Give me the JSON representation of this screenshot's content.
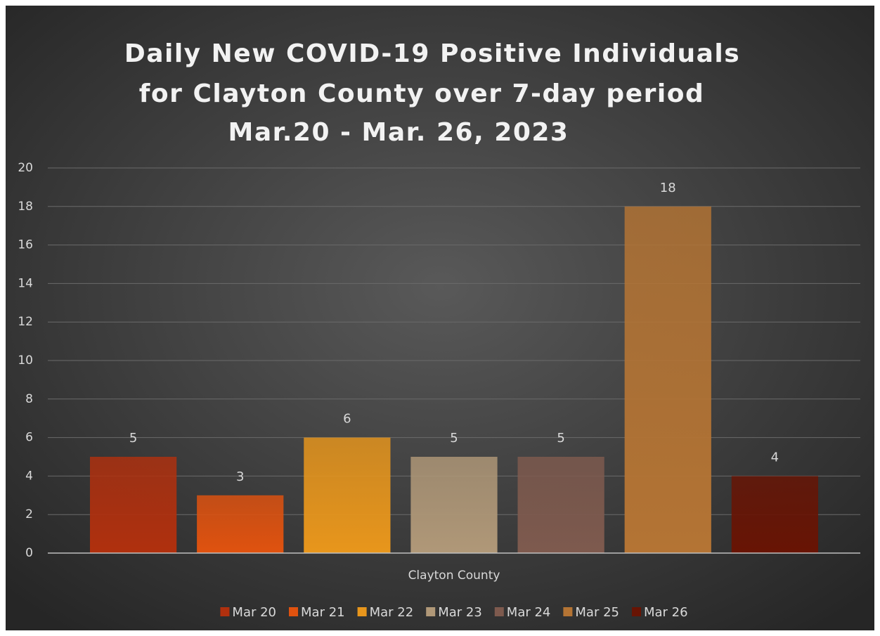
{
  "chart_data": {
    "type": "bar",
    "title": [
      "Daily New COVID-19 Positive Individuals",
      "for Clayton County over 7-day period",
      "Mar.20 - Mar. 26, 2023"
    ],
    "categories": [
      "Clayton County"
    ],
    "series": [
      {
        "name": "Mar 20",
        "color": "#b0300e",
        "values": [
          5
        ]
      },
      {
        "name": "Mar 21",
        "color": "#e0520f",
        "values": [
          3
        ]
      },
      {
        "name": "Mar 22",
        "color": "#e8961c",
        "values": [
          6
        ]
      },
      {
        "name": "Mar 23",
        "color": "#b09878",
        "values": [
          5
        ]
      },
      {
        "name": "Mar 24",
        "color": "#7e5a4e",
        "values": [
          5
        ]
      },
      {
        "name": "Mar 25",
        "color": "#b47434",
        "values": [
          18
        ]
      },
      {
        "name": "Mar 26",
        "color": "#681404",
        "values": [
          4
        ]
      }
    ],
    "ylim": [
      0,
      20
    ],
    "yticks": [
      0,
      2,
      4,
      6,
      8,
      10,
      12,
      14,
      16,
      18,
      20
    ],
    "grid": true,
    "legend": "bottom"
  }
}
